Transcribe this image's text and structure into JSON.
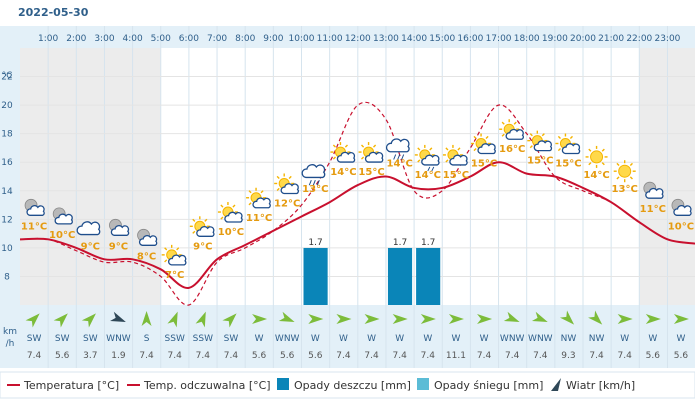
{
  "date": "2022-05-30",
  "colors": {
    "temperature": "#c8102e",
    "feels_like": "#c8102e",
    "rain": "#0a85b8",
    "snow": "#5bbcd6",
    "wind": "#2f4858",
    "arrow": "#7cbc3a",
    "temp_label": "#e59b10",
    "night_bg": "#ececec",
    "day_bg": "#ffffff",
    "axis_bg": "#e3f0f8"
  },
  "chart_data": {
    "type": "line",
    "hours": [
      "1:00",
      "2:00",
      "3:00",
      "4:00",
      "5:00",
      "6:00",
      "7:00",
      "8:00",
      "9:00",
      "10:00",
      "11:00",
      "12:00",
      "13:00",
      "14:00",
      "15:00",
      "16:00",
      "17:00",
      "18:00",
      "19:00",
      "20:00",
      "21:00",
      "22:00",
      "23:00"
    ],
    "y_unit": "°C",
    "y_ticks": [
      8,
      10,
      12,
      14,
      16,
      18,
      20,
      22
    ],
    "ylim": [
      6,
      24
    ],
    "temperature": [
      10.6,
      10.0,
      9.2,
      9.2,
      8.5,
      7.2,
      9.2,
      10.2,
      11.2,
      12.2,
      13.2,
      14.4,
      15.0,
      14.2,
      14.2,
      15.0,
      16.0,
      15.2,
      15.0,
      14.2,
      13.2,
      11.8,
      10.6
    ],
    "feels_like": [
      10.6,
      9.8,
      9.0,
      9.0,
      8.0,
      6.0,
      9.0,
      10.0,
      11.2,
      13.0,
      16.0,
      20.0,
      19.0,
      14.0,
      14.0,
      17.0,
      20.0,
      18.0,
      15.0,
      14.0,
      13.2,
      11.8,
      10.6
    ],
    "temp_labels": [
      "11°C",
      "10°C",
      "9°C",
      "9°C",
      "8°C",
      "7°C",
      "9°C",
      "10°C",
      "11°C",
      "12°C",
      "13°C",
      "14°C",
      "15°C",
      "14°C",
      "14°C",
      "15°C",
      "15°C",
      "16°C",
      "15°C",
      "15°C",
      "14°C",
      "13°C",
      "11°C",
      "10°C"
    ],
    "weather_icons": [
      "night-cloudy-icon",
      "night-cloudy-icon",
      "cloud-icon",
      "night-cloudy-icon",
      "night-cloudy-icon",
      "partly-sunny-icon",
      "partly-sunny-icon",
      "partly-sunny-icon",
      "partly-sunny-icon",
      "partly-sunny-icon",
      "rain-cloud-icon",
      "partly-sunny-icon",
      "partly-sunny-icon",
      "rain-cloud-icon",
      "partly-sunny-rain-icon",
      "partly-sunny-icon",
      "partly-sunny-icon",
      "partly-sunny-icon",
      "partly-sunny-icon",
      "partly-sunny-icon",
      "sun-icon",
      "sun-icon",
      "night-cloudy-icon",
      "night-cloudy-icon"
    ],
    "rain": [
      0,
      0,
      0,
      0,
      0,
      0,
      0,
      0,
      0,
      0,
      1.7,
      0,
      0,
      1.7,
      1.7,
      0,
      0,
      0,
      0,
      0,
      0,
      0,
      0,
      0
    ],
    "snow": [
      0,
      0,
      0,
      0,
      0,
      0,
      0,
      0,
      0,
      0,
      0,
      0,
      0,
      0,
      0,
      0,
      0,
      0,
      0,
      0,
      0,
      0,
      0,
      0
    ],
    "wind_dir": [
      "SW",
      "SW",
      "SW",
      "WNW",
      "S",
      "SSW",
      "SSW",
      "SW",
      "W",
      "WNW",
      "W",
      "W",
      "W",
      "W",
      "W",
      "W",
      "W",
      "WNW",
      "WNW",
      "NW",
      "NW",
      "W",
      "W",
      "W"
    ],
    "wind_deg": [
      225,
      225,
      225,
      292,
      180,
      202,
      202,
      225,
      270,
      292,
      270,
      270,
      270,
      270,
      270,
      270,
      270,
      292,
      292,
      315,
      315,
      270,
      270,
      270
    ],
    "wind_speed": [
      "7.4",
      "5.6",
      "3.7",
      "1.9",
      "7.4",
      "7.4",
      "7.4",
      "7.4",
      "5.6",
      "5.6",
      "5.6",
      "7.4",
      "7.4",
      "7.4",
      "7.4",
      "11.1",
      "7.4",
      "7.4",
      "7.4",
      "9.3",
      "7.4",
      "7.4",
      "5.6",
      "5.6"
    ],
    "wind_unit": [
      "km",
      "/h"
    ],
    "night_hours_before": 5,
    "night_hours_after": 22
  },
  "legend": {
    "temperature": "Temperatura [°C]",
    "feels_like": "Temp. odczuwalna [°C]",
    "rain": "Opady deszczu [mm]",
    "snow": "Opady śniegu [mm]",
    "wind": "Wiatr [km/h]"
  }
}
